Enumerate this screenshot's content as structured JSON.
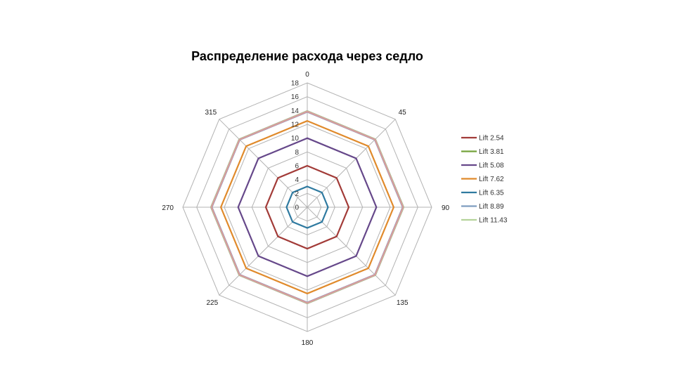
{
  "chart_data": {
    "type": "radar",
    "title": "Распределение расхода через седло",
    "categories": [
      "0",
      "45",
      "90",
      "135",
      "180",
      "225",
      "270",
      "315"
    ],
    "r_ticks": [
      "0",
      "2",
      "4",
      "6",
      "8",
      "10",
      "12",
      "14",
      "16",
      "18"
    ],
    "r_range": [
      0,
      18
    ],
    "grid": true,
    "legend_position": "right",
    "series": [
      {
        "name": "Lift 2.54",
        "color": "#a23b38",
        "values": [
          6,
          6,
          6,
          6,
          6,
          6,
          6,
          6
        ]
      },
      {
        "name": "Lift 3.81",
        "color": "#74a23a",
        "values": [
          13.9,
          13.9,
          13.9,
          13.9,
          13.9,
          13.9,
          13.9,
          13.9
        ]
      },
      {
        "name": "Lift 5.08",
        "color": "#66488a",
        "values": [
          10,
          10,
          10,
          10,
          10,
          10,
          10,
          10
        ]
      },
      {
        "name": "Lift 7.62",
        "color": "#e08a2b",
        "values": [
          12.5,
          12.5,
          12.5,
          12.5,
          12.5,
          12.5,
          12.5,
          12.5
        ]
      },
      {
        "name": "Lift 6.35",
        "color": "#2f7aa0",
        "values": [
          3,
          3,
          3,
          3,
          3,
          3,
          3,
          3
        ]
      },
      {
        "name": "Lift 8.89",
        "color": "#7f9dc0",
        "values": [
          13.8,
          13.8,
          13.8,
          13.8,
          13.8,
          13.8,
          13.8,
          13.8
        ]
      },
      {
        "name": "Lift 11.43",
        "color": "#b5d39a",
        "values": [
          13.9,
          13.9,
          13.9,
          13.9,
          13.9,
          13.9,
          13.9,
          13.9
        ]
      }
    ],
    "overlay_color": "#d89b9d"
  }
}
